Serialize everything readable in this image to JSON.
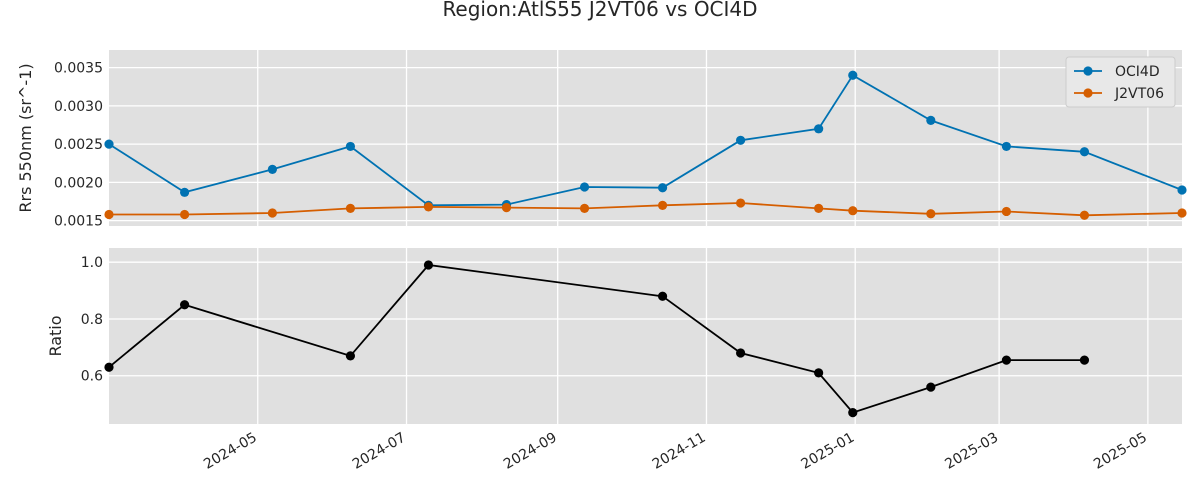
{
  "chart_data": {
    "title": "Region:AtlS55 J2VT06 vs OCI4D",
    "x_ticks": [
      "2024-05",
      "2024-07",
      "2024-09",
      "2024-11",
      "2025-01",
      "2025-03",
      "2025-05"
    ],
    "x_tick_dates": [
      "2024-05-01",
      "2024-07-01",
      "2024-09-01",
      "2024-11-01",
      "2025-01-01",
      "2025-03-01",
      "2025-05-01"
    ],
    "xlim": [
      "2024-03-01",
      "2025-05-15"
    ],
    "grid": true,
    "panels": [
      {
        "type": "line",
        "ylabel": "Rrs 550nm (sr^-1)",
        "ylim": [
          0.00143,
          0.00373
        ],
        "y_ticks": [
          "0.0015",
          "0.0020",
          "0.0025",
          "0.0030",
          "0.0035"
        ],
        "y_tick_values": [
          0.0015,
          0.002,
          0.0025,
          0.003,
          0.0035
        ],
        "legend_position": "top-right",
        "series": [
          {
            "name": "OCI4D",
            "color": "#0072b2",
            "points": [
              {
                "x": "2024-03-01",
                "y": 0.0025
              },
              {
                "x": "2024-04-01",
                "y": 0.00187
              },
              {
                "x": "2024-05-07",
                "y": 0.00217
              },
              {
                "x": "2024-06-08",
                "y": 0.00247
              },
              {
                "x": "2024-07-10",
                "y": 0.0017
              },
              {
                "x": "2024-08-11",
                "y": 0.00171
              },
              {
                "x": "2024-09-12",
                "y": 0.00194
              },
              {
                "x": "2024-10-14",
                "y": 0.00193
              },
              {
                "x": "2024-11-15",
                "y": 0.00255
              },
              {
                "x": "2024-12-17",
                "y": 0.0027
              },
              {
                "x": "2024-12-31",
                "y": 0.0034
              },
              {
                "x": "2025-02-01",
                "y": 0.00281
              },
              {
                "x": "2025-03-04",
                "y": 0.00247
              },
              {
                "x": "2025-04-05",
                "y": 0.0024
              },
              {
                "x": "2025-05-15",
                "y": 0.0019
              }
            ]
          },
          {
            "name": "J2VT06",
            "color": "#d55e00",
            "points": [
              {
                "x": "2024-03-01",
                "y": 0.00158
              },
              {
                "x": "2024-04-01",
                "y": 0.00158
              },
              {
                "x": "2024-05-07",
                "y": 0.0016
              },
              {
                "x": "2024-06-08",
                "y": 0.00166
              },
              {
                "x": "2024-07-10",
                "y": 0.00168
              },
              {
                "x": "2024-08-11",
                "y": 0.00167
              },
              {
                "x": "2024-09-12",
                "y": 0.00166
              },
              {
                "x": "2024-10-14",
                "y": 0.0017
              },
              {
                "x": "2024-11-15",
                "y": 0.00173
              },
              {
                "x": "2024-12-17",
                "y": 0.00166
              },
              {
                "x": "2024-12-31",
                "y": 0.00163
              },
              {
                "x": "2025-02-01",
                "y": 0.00159
              },
              {
                "x": "2025-03-04",
                "y": 0.00162
              },
              {
                "x": "2025-04-05",
                "y": 0.00157
              },
              {
                "x": "2025-05-15",
                "y": 0.0016
              }
            ]
          }
        ]
      },
      {
        "type": "line",
        "ylabel": "Ratio",
        "ylim": [
          0.43,
          1.05
        ],
        "y_ticks": [
          "0.6",
          "0.8",
          "1.0"
        ],
        "y_tick_values": [
          0.6,
          0.8,
          1.0
        ],
        "series": [
          {
            "name": "",
            "color": "#000000",
            "points": [
              {
                "x": "2024-03-01",
                "y": 0.63
              },
              {
                "x": "2024-04-01",
                "y": 0.85
              },
              {
                "x": "2024-06-08",
                "y": 0.67
              },
              {
                "x": "2024-07-10",
                "y": 0.99
              },
              {
                "x": "2024-10-14",
                "y": 0.88
              },
              {
                "x": "2024-11-15",
                "y": 0.68
              },
              {
                "x": "2024-12-17",
                "y": 0.61
              },
              {
                "x": "2024-12-31",
                "y": 0.47
              },
              {
                "x": "2025-02-01",
                "y": 0.56
              },
              {
                "x": "2025-03-04",
                "y": 0.655
              },
              {
                "x": "2025-04-05",
                "y": 0.655
              }
            ]
          }
        ]
      }
    ]
  }
}
